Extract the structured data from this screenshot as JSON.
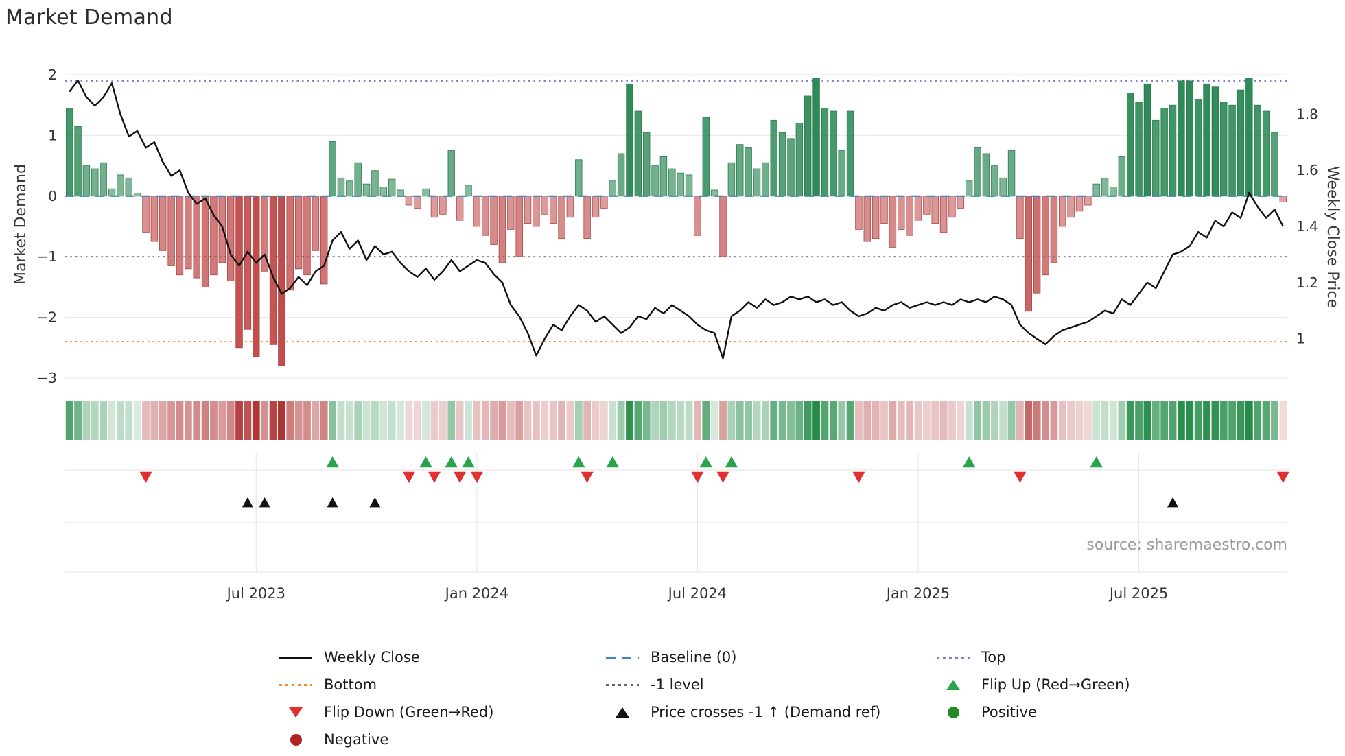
{
  "title": "Market Demand",
  "source": "source: sharemaestro.com",
  "chart_data": {
    "type": "bar",
    "title": "Market Demand",
    "ylabel_left": "Market Demand",
    "ylabel_right": "Weekly Close Price",
    "x_unit": "week",
    "x_ticks": [
      {
        "label": "Jul 2023",
        "index": 22
      },
      {
        "label": "Jan 2024",
        "index": 48
      },
      {
        "label": "Jul 2024",
        "index": 74
      },
      {
        "label": "Jan 2025",
        "index": 100
      },
      {
        "label": "Jul 2025",
        "index": 126
      }
    ],
    "left_axis": {
      "ticks": [
        2,
        1,
        0,
        -1,
        -2,
        -3
      ],
      "min": -3.1,
      "max": 2.1
    },
    "right_axis": {
      "ticks": [
        1,
        1.2,
        1.4,
        1.6,
        1.8
      ],
      "top": 1.94,
      "bottom": 0.86
    },
    "reference_lines": {
      "top": 1.9,
      "baseline": 0,
      "minus1": -1,
      "bottom": -2.4
    },
    "series": [
      {
        "name": "Market Demand",
        "type": "bar",
        "axis": "left",
        "values": [
          1.45,
          1.15,
          0.5,
          0.45,
          0.55,
          0.12,
          0.35,
          0.3,
          0.05,
          -0.6,
          -0.75,
          -0.9,
          -1.15,
          -1.3,
          -1.2,
          -1.35,
          -1.5,
          -1.3,
          -1.1,
          -1.4,
          -2.5,
          -2.2,
          -2.65,
          -1.25,
          -2.45,
          -2.8,
          -1.55,
          -1.2,
          -1.3,
          -0.9,
          -1.45,
          0.9,
          0.3,
          0.25,
          0.55,
          0.2,
          0.42,
          0.15,
          0.28,
          0.1,
          -0.15,
          -0.2,
          0.12,
          -0.35,
          -0.3,
          0.75,
          -0.4,
          0.18,
          -0.5,
          -0.65,
          -0.8,
          -1.1,
          -0.55,
          -1.0,
          -0.45,
          -0.5,
          -0.3,
          -0.45,
          -0.7,
          -0.35,
          0.6,
          -0.7,
          -0.35,
          -0.2,
          0.25,
          0.7,
          1.85,
          1.4,
          1.05,
          0.5,
          0.65,
          0.45,
          0.38,
          0.35,
          -0.65,
          1.3,
          0.1,
          -1.0,
          0.55,
          0.85,
          0.8,
          0.45,
          0.55,
          1.25,
          1.05,
          0.95,
          1.2,
          1.65,
          1.95,
          1.45,
          1.4,
          0.75,
          1.4,
          -0.55,
          -0.75,
          -0.7,
          -0.45,
          -0.85,
          -0.55,
          -0.65,
          -0.4,
          -0.3,
          -0.45,
          -0.6,
          -0.35,
          -0.2,
          0.25,
          0.8,
          0.7,
          0.5,
          0.3,
          0.75,
          -0.7,
          -1.9,
          -1.6,
          -1.3,
          -1.1,
          -0.5,
          -0.35,
          -0.25,
          -0.15,
          0.2,
          0.3,
          0.15,
          0.65,
          1.7,
          1.55,
          1.85,
          1.25,
          1.45,
          1.5,
          1.9,
          1.9,
          1.6,
          1.85,
          1.8,
          1.55,
          1.5,
          1.75,
          1.95,
          1.5,
          1.4,
          1.05,
          -0.1
        ]
      },
      {
        "name": "Weekly Close",
        "type": "line",
        "axis": "right",
        "values": [
          1.88,
          1.92,
          1.86,
          1.83,
          1.86,
          1.91,
          1.8,
          1.72,
          1.74,
          1.68,
          1.7,
          1.63,
          1.58,
          1.6,
          1.52,
          1.48,
          1.5,
          1.44,
          1.4,
          1.3,
          1.26,
          1.31,
          1.27,
          1.3,
          1.22,
          1.16,
          1.18,
          1.22,
          1.19,
          1.24,
          1.26,
          1.35,
          1.38,
          1.32,
          1.35,
          1.28,
          1.33,
          1.3,
          1.31,
          1.27,
          1.24,
          1.22,
          1.25,
          1.21,
          1.24,
          1.28,
          1.24,
          1.26,
          1.28,
          1.27,
          1.23,
          1.2,
          1.12,
          1.08,
          1.02,
          0.94,
          1.0,
          1.05,
          1.03,
          1.08,
          1.12,
          1.1,
          1.06,
          1.08,
          1.05,
          1.02,
          1.04,
          1.08,
          1.07,
          1.11,
          1.09,
          1.12,
          1.1,
          1.08,
          1.05,
          1.03,
          1.02,
          0.93,
          1.08,
          1.1,
          1.13,
          1.11,
          1.14,
          1.12,
          1.13,
          1.15,
          1.14,
          1.15,
          1.13,
          1.14,
          1.12,
          1.13,
          1.1,
          1.08,
          1.09,
          1.11,
          1.1,
          1.12,
          1.13,
          1.11,
          1.12,
          1.13,
          1.12,
          1.13,
          1.12,
          1.14,
          1.13,
          1.14,
          1.13,
          1.15,
          1.14,
          1.12,
          1.05,
          1.02,
          1.0,
          0.98,
          1.01,
          1.03,
          1.04,
          1.05,
          1.06,
          1.08,
          1.1,
          1.09,
          1.14,
          1.12,
          1.16,
          1.2,
          1.18,
          1.24,
          1.3,
          1.31,
          1.33,
          1.38,
          1.36,
          1.42,
          1.4,
          1.45,
          1.43,
          1.52,
          1.47,
          1.43,
          1.46,
          1.4
        ]
      }
    ],
    "markers": {
      "flip_up": [
        31,
        42,
        45,
        47,
        60,
        64,
        75,
        78,
        106,
        121
      ],
      "flip_down": [
        9,
        40,
        43,
        46,
        48,
        61,
        74,
        77,
        93,
        112,
        143
      ],
      "price_cross_minus1": [
        21,
        23,
        31,
        36,
        130
      ]
    },
    "heatmap_strip": "weekly demand intensity (green positive, red negative)",
    "legend_position": "bottom",
    "grid": true
  },
  "legend": {
    "items": [
      {
        "id": "weekly_close",
        "label": "Weekly Close"
      },
      {
        "id": "baseline",
        "label": "Baseline (0)"
      },
      {
        "id": "top",
        "label": "Top"
      },
      {
        "id": "bottom",
        "label": "Bottom"
      },
      {
        "id": "minus1",
        "label": "-1 level"
      },
      {
        "id": "flip_up",
        "label": "Flip Up (Red→Green)"
      },
      {
        "id": "flip_down",
        "label": "Flip Down (Green→Red)"
      },
      {
        "id": "price_cross",
        "label": "Price crosses -1 ↑ (Demand ref)"
      },
      {
        "id": "positive",
        "label": "Positive"
      },
      {
        "id": "negative",
        "label": "Negative"
      }
    ]
  },
  "colors": {
    "bar_positive": "#2e8b57",
    "bar_positive_edge": "#1d6b41",
    "bar_negative": "#c24b4b",
    "bar_negative_edge": "#9e3535",
    "line": "#111111",
    "baseline": "#3a87c8",
    "top": "#7b7bd5",
    "bottom": "#f28c28",
    "minus1": "#63636e",
    "flip_up": "#2aa44c",
    "flip_down": "#e03030",
    "cross": "#111111",
    "positive_dot": "#228b22",
    "negative_dot": "#b22222",
    "heat_green": "#1f8a44",
    "heat_red": "#b03434",
    "grid": "#e7e7e7"
  }
}
